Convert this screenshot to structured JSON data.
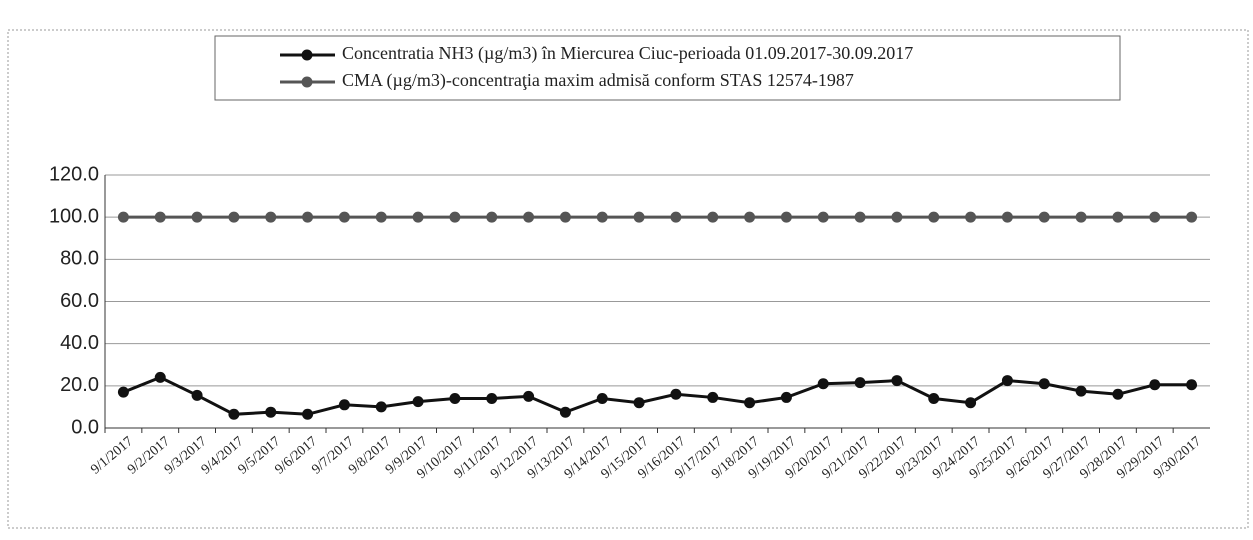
{
  "chart_data": {
    "type": "line",
    "categories": [
      "9/1/2017",
      "9/2/2017",
      "9/3/2017",
      "9/4/2017",
      "9/5/2017",
      "9/6/2017",
      "9/7/2017",
      "9/8/2017",
      "9/9/2017",
      "9/10/2017",
      "9/11/2017",
      "9/12/2017",
      "9/13/2017",
      "9/14/2017",
      "9/15/2017",
      "9/16/2017",
      "9/17/2017",
      "9/18/2017",
      "9/19/2017",
      "9/20/2017",
      "9/21/2017",
      "9/22/2017",
      "9/23/2017",
      "9/24/2017",
      "9/25/2017",
      "9/26/2017",
      "9/27/2017",
      "9/28/2017",
      "9/29/2017",
      "9/30/2017"
    ],
    "series": [
      {
        "name": "Concentratia NH3 (µg/m3) în Miercurea Ciuc-perioada 01.09.2017-30.09.2017",
        "color": "#111111",
        "values": [
          17,
          24,
          15.5,
          6.5,
          7.5,
          6.5,
          11,
          10,
          12.5,
          14,
          14,
          15,
          7.5,
          14,
          12,
          16,
          14.5,
          12,
          14.5,
          21,
          21.5,
          22.5,
          14,
          12,
          22.5,
          21,
          17.5,
          16,
          20.5,
          20.5
        ]
      },
      {
        "name": "CMA (µg/m3)-concentraţia maxim admisă conform STAS 12574-1987",
        "color": "#555555",
        "values": [
          100,
          100,
          100,
          100,
          100,
          100,
          100,
          100,
          100,
          100,
          100,
          100,
          100,
          100,
          100,
          100,
          100,
          100,
          100,
          100,
          100,
          100,
          100,
          100,
          100,
          100,
          100,
          100,
          100,
          100
        ]
      }
    ],
    "ylim": [
      0,
      120
    ],
    "yticks": [
      {
        "value": 0,
        "label": "0.0"
      },
      {
        "value": 20,
        "label": "20.0"
      },
      {
        "value": 40,
        "label": "40.0"
      },
      {
        "value": 60,
        "label": "60.0"
      },
      {
        "value": 80,
        "label": "80.0"
      },
      {
        "value": 100,
        "label": "100.0"
      },
      {
        "value": 120,
        "label": "120.0"
      }
    ],
    "grid": true,
    "legend": "top"
  }
}
